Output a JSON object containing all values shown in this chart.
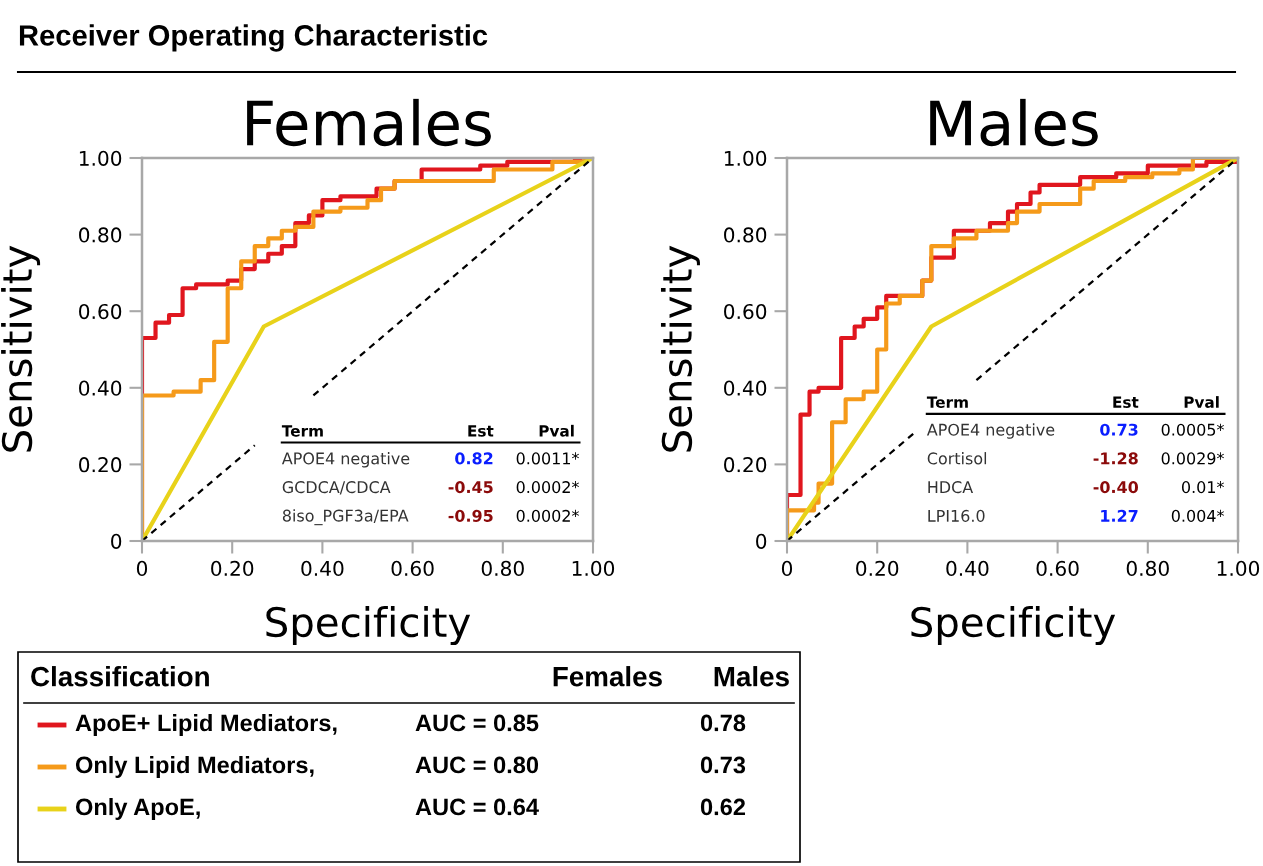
{
  "chart_data": [
    {
      "type": "step",
      "title": "Females",
      "xlabel": "Specificity",
      "ylabel": "Sensitivity",
      "legend_title": "Classification",
      "legend": "bottom left",
      "line_style": "solid",
      "xlim": [
        0,
        1
      ],
      "ylim": [
        0,
        1
      ],
      "xticks": [
        0,
        {
          "value": 0.2,
          "label": "0.20"
        },
        {
          "value": 0.4,
          "label": "0.40"
        },
        {
          "value": 0.6,
          "label": "0.60"
        },
        {
          "value": 0.8,
          "label": "0.80"
        },
        {
          "value": 1,
          "label": "1.00"
        }
      ],
      "yticks": [
        0,
        {
          "value": 0.2,
          "label": "0.20"
        },
        {
          "value": 0.4,
          "label": "0.40"
        },
        {
          "value": 0.6,
          "label": "0.60"
        },
        {
          "value": 0.8,
          "label": "0.80"
        },
        {
          "value": 1,
          "label": "1.00"
        }
      ],
      "series": [
        {
          "name": "ApoE+ Lipid Mediators,",
          "color": "#e0161e",
          "x": [
            0,
            0,
            0.03,
            0.06,
            0.09,
            0.12,
            0.19,
            0.22,
            0.25,
            0.28,
            0.31,
            0.34,
            0.37,
            0.4,
            0.44,
            0.52,
            0.56,
            0.62,
            0.75,
            0.81,
            0.96,
            1
          ],
          "values": [
            0,
            0.53,
            0.57,
            0.59,
            0.66,
            0.67,
            0.68,
            0.71,
            0.73,
            0.75,
            0.77,
            0.83,
            0.85,
            0.89,
            0.9,
            0.92,
            0.94,
            0.97,
            0.98,
            0.99,
            1,
            1
          ]
        },
        {
          "name": "Only Lipid Mediators,",
          "color": "#f59a1a",
          "x": [
            0,
            0,
            0.07,
            0.13,
            0.16,
            0.19,
            0.22,
            0.25,
            0.28,
            0.31,
            0.34,
            0.38,
            0.4,
            0.44,
            0.5,
            0.53,
            0.56,
            0.78,
            0.91,
            0.98,
            1
          ],
          "values": [
            0,
            0.38,
            0.39,
            0.42,
            0.52,
            0.66,
            0.73,
            0.77,
            0.79,
            0.81,
            0.82,
            0.86,
            0.86,
            0.87,
            0.89,
            0.92,
            0.94,
            0.97,
            0.99,
            1,
            1
          ]
        },
        {
          "name": "Only ApoE,",
          "type": "line",
          "color": "#e8d21a",
          "x": [
            0,
            0.27,
            1
          ],
          "values": [
            0,
            0.56,
            1
          ]
        },
        {
          "type": "line",
          "color": "#000000",
          "line_style": "dashed",
          "x": [
            0,
            0.25,
            0.3,
            0.38,
            1
          ],
          "values": [
            0,
            0.25,
            null,
            0.38,
            1
          ]
        }
      ],
      "annotations": [
        "Receiver Operating Characteristic",
        "Term",
        "Est",
        "Pval",
        "APOE4 negative",
        "0.82",
        "0.0011*",
        "GCDCA/CDCA",
        "-0.45",
        "0.0002*",
        "8iso_PGF3a/EPA",
        "-0.95",
        "0.0002*",
        "Females",
        "AUC = 0.85",
        "AUC = 0.80",
        "AUC = 0.64"
      ]
    },
    {
      "type": "step",
      "title": "Males",
      "xlabel": "Specificity",
      "ylabel": "Sensitivity",
      "line_style": "solid",
      "xlim": [
        0,
        1
      ],
      "ylim": [
        0,
        1
      ],
      "xticks": [
        0,
        {
          "value": 0.2,
          "label": "0.20"
        },
        {
          "value": 0.4,
          "label": "0.40"
        },
        {
          "value": 0.6,
          "label": "0.60"
        },
        {
          "value": 0.8,
          "label": "0.80"
        },
        {
          "value": 1,
          "label": "1.00"
        }
      ],
      "yticks": [
        0,
        {
          "value": 0.2,
          "label": "0.20"
        },
        {
          "value": 0.4,
          "label": "0.40"
        },
        {
          "value": 0.6,
          "label": "0.60"
        },
        {
          "value": 0.8,
          "label": "0.80"
        },
        {
          "value": 1,
          "label": "1.00"
        }
      ],
      "series": [
        {
          "color": "#e0161e",
          "x": [
            0,
            0,
            0.03,
            0.05,
            0.07,
            0.12,
            0.15,
            0.17,
            0.2,
            0.22,
            0.3,
            0.32,
            0.37,
            0.42,
            0.45,
            0.49,
            0.51,
            0.54,
            0.56,
            0.63,
            0.65,
            0.68,
            0.73,
            0.8,
            0.93,
            1
          ],
          "values": [
            0,
            0.12,
            0.33,
            0.39,
            0.4,
            0.53,
            0.56,
            0.58,
            0.61,
            0.64,
            0.68,
            0.74,
            0.81,
            0.81,
            0.83,
            0.86,
            0.88,
            0.91,
            0.93,
            0.93,
            0.95,
            0.95,
            0.96,
            0.98,
            0.99,
            1
          ]
        },
        {
          "color": "#f59a1a",
          "x": [
            0,
            0,
            0.06,
            0.07,
            0.1,
            0.13,
            0.17,
            0.2,
            0.22,
            0.25,
            0.3,
            0.32,
            0.37,
            0.42,
            0.49,
            0.51,
            0.56,
            0.65,
            0.68,
            0.75,
            0.81,
            0.87,
            0.9,
            1
          ],
          "values": [
            0,
            0.08,
            0.1,
            0.15,
            0.31,
            0.37,
            0.39,
            0.5,
            0.62,
            0.64,
            0.68,
            0.77,
            0.79,
            0.81,
            0.83,
            0.86,
            0.88,
            0.92,
            0.94,
            0.95,
            0.96,
            0.97,
            1,
            1
          ]
        },
        {
          "type": "line",
          "color": "#e8d21a",
          "x": [
            0,
            0.32,
            1
          ],
          "values": [
            0,
            0.56,
            1
          ]
        },
        {
          "type": "line",
          "color": "#000000",
          "line_style": "dashed",
          "x": [
            0,
            0.28,
            0.35,
            0.42,
            1
          ],
          "values": [
            0,
            0.28,
            null,
            0.42,
            1
          ]
        }
      ],
      "annotations": [
        "Term",
        "Est",
        "Pval",
        "APOE4 negative",
        "0.73",
        "0.0005*",
        "Cortisol",
        "-1.28",
        "0.0029*",
        "HDCA",
        "-0.40",
        "0.01*",
        "LPI16.0",
        "1.27",
        "0.004*",
        "Males",
        "0.78",
        "0.73",
        "0.62"
      ]
    }
  ]
}
